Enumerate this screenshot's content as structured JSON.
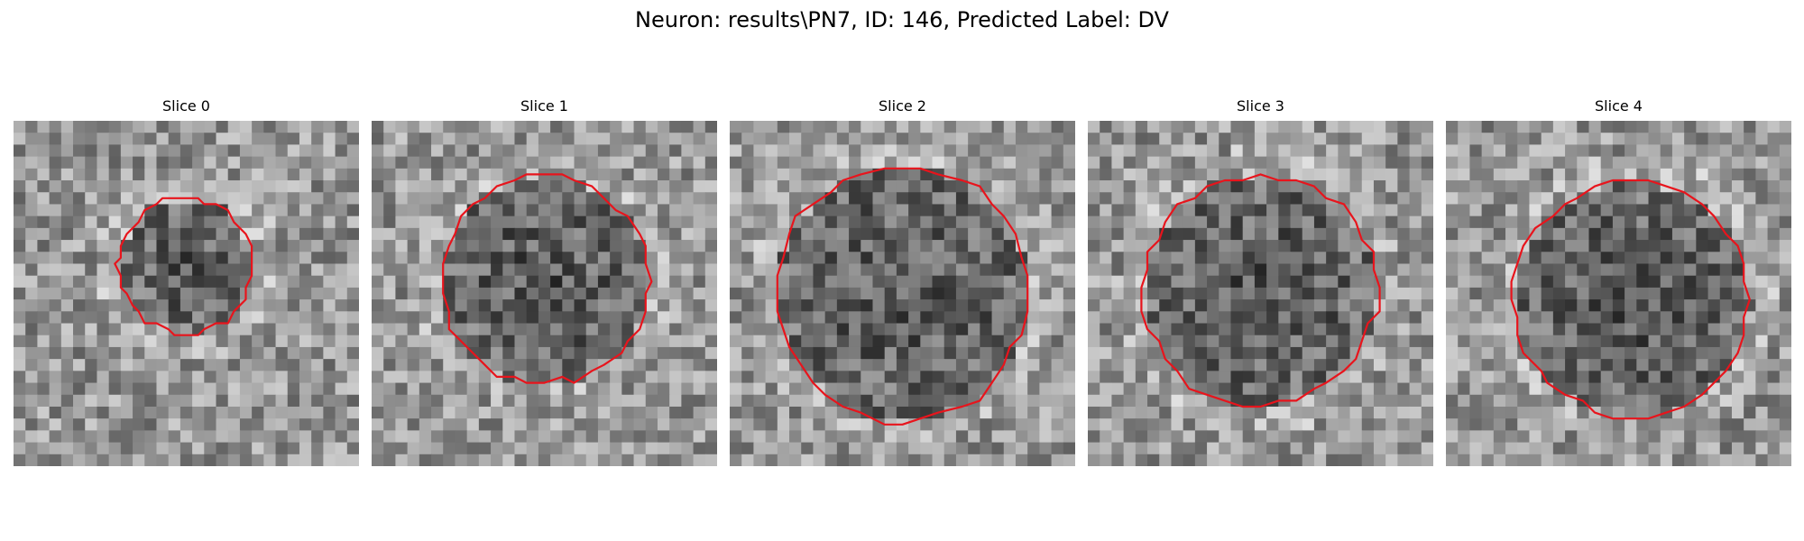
{
  "figure": {
    "title": "Neuron: results\\PN7, ID: 146, Predicted Label: DV"
  },
  "panels": [
    {
      "title": "Slice 0",
      "contour_color": "#e8141c",
      "contour_radius": 0.195
    },
    {
      "title": "Slice 1",
      "contour_color": "#e8141c",
      "contour_radius": 0.3
    },
    {
      "title": "Slice 2",
      "contour_color": "#e8141c",
      "contour_radius": 0.365
    },
    {
      "title": "Slice 3",
      "contour_color": "#e8141c",
      "contour_radius": 0.335
    },
    {
      "title": "Slice 4",
      "contour_color": "#e8141c",
      "contour_radius": 0.34
    }
  ]
}
